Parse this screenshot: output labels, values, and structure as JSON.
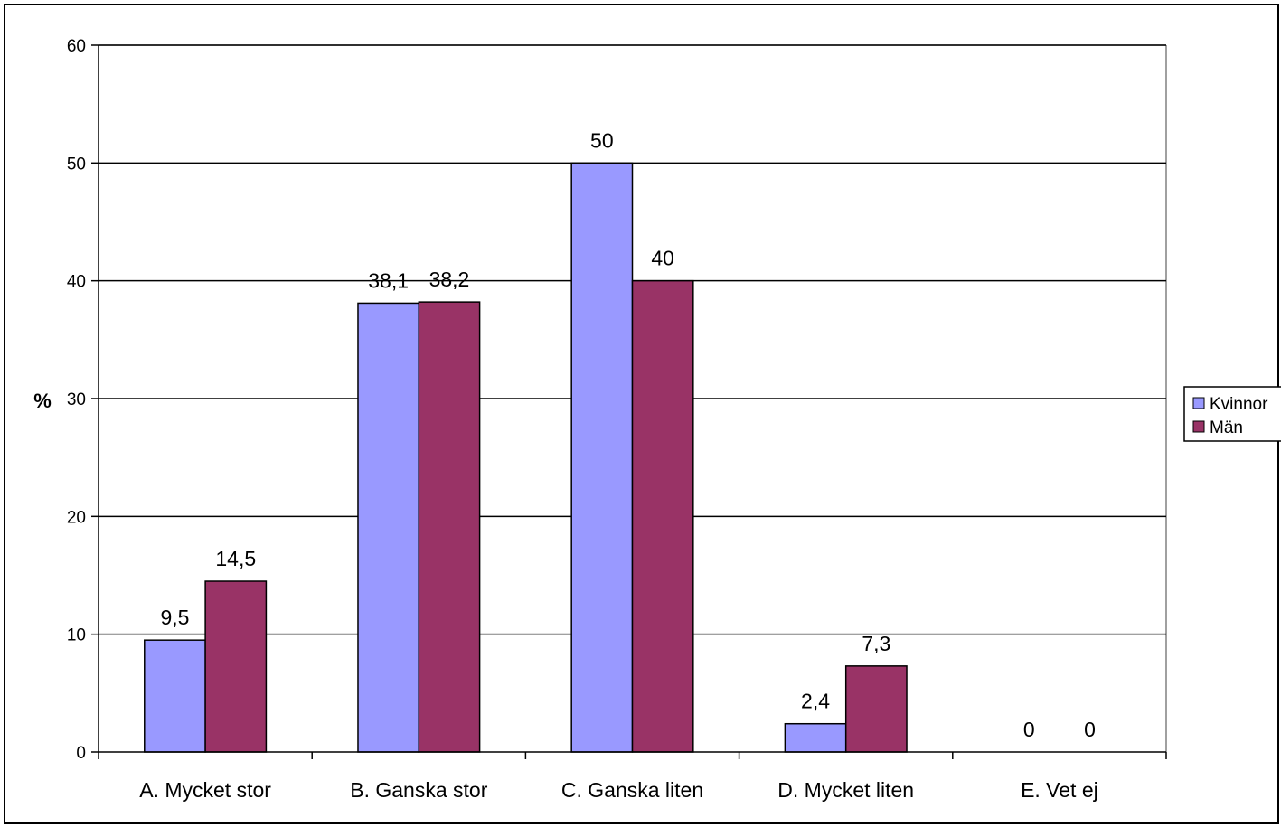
{
  "chart_data": {
    "type": "bar",
    "title": "",
    "xlabel": "",
    "ylabel": "%",
    "ylim": [
      0,
      60
    ],
    "yticks": [
      "0",
      "10",
      "20",
      "30",
      "40",
      "50",
      "60"
    ],
    "categories": [
      "A. Mycket stor",
      "B. Ganska stor",
      "C. Ganska liten",
      "D. Mycket liten",
      "E. Vet ej"
    ],
    "series": [
      {
        "name": "Kvinnor",
        "color": "#9999FF",
        "values": [
          9.5,
          38.1,
          50,
          2.4,
          0
        ],
        "labels": [
          "9,5",
          "38,1",
          "50",
          "2,4",
          "0"
        ]
      },
      {
        "name": "Män",
        "color": "#993366",
        "values": [
          14.5,
          38.2,
          40,
          7.3,
          0
        ],
        "labels": [
          "14,5",
          "38,2",
          "40",
          "7,3",
          "0"
        ]
      }
    ],
    "grid": true,
    "legend_position": "right"
  }
}
